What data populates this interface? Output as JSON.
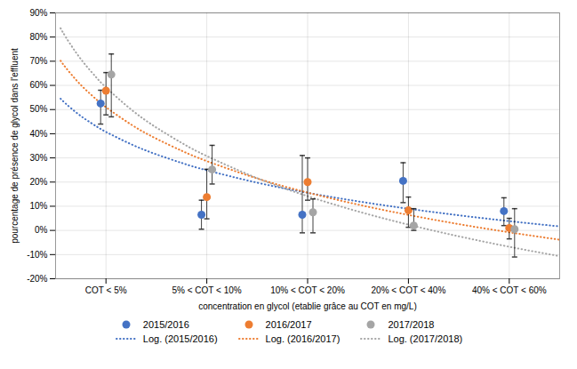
{
  "chart_data": {
    "type": "scatter",
    "xlabel": "concentration en glycol (etablie grâce au COT en mg/L)",
    "ylabel": "pourcentage de présence de glycol dans l'effluent",
    "xlim": [
      0.5,
      5.5
    ],
    "xticks": [
      {
        "value": 1,
        "label": "COT < 5%"
      },
      {
        "value": 2,
        "label": "5% < COT < 10%"
      },
      {
        "value": 3,
        "label": "10% < COT < 20%"
      },
      {
        "value": 4,
        "label": "20% < COT < 40%"
      },
      {
        "value": 5,
        "label": "40% < COT < 60%"
      }
    ],
    "ylim": [
      -0.2,
      0.9
    ],
    "yticks": [
      {
        "value": -0.2,
        "label": "-20%"
      },
      {
        "value": -0.1,
        "label": "-10%"
      },
      {
        "value": 0.0,
        "label": "0%"
      },
      {
        "value": 0.1,
        "label": "10%"
      },
      {
        "value": 0.2,
        "label": "20%"
      },
      {
        "value": 0.3,
        "label": "30%"
      },
      {
        "value": 0.4,
        "label": "40%"
      },
      {
        "value": 0.5,
        "label": "50%"
      },
      {
        "value": 0.6,
        "label": "60%"
      },
      {
        "value": 0.7,
        "label": "70%"
      },
      {
        "value": 0.8,
        "label": "80%"
      },
      {
        "value": 0.9,
        "label": "90%"
      }
    ],
    "grid": true,
    "legend": "bottom",
    "series": [
      {
        "name": "2015/2016",
        "type": "scatter",
        "marker": "circle",
        "color": "#4472C4",
        "x": [
          1,
          2,
          3,
          4,
          5
        ],
        "values": [
          0.525,
          0.065,
          0.065,
          0.205,
          0.08
        ],
        "err_low": [
          0.085,
          0.06,
          0.075,
          0.09,
          0.06
        ],
        "err_high": [
          0.055,
          0.06,
          0.245,
          0.075,
          0.055
        ]
      },
      {
        "name": "2016/2017",
        "type": "scatter",
        "marker": "circle",
        "color": "#ED7D31",
        "x": [
          1,
          2,
          3,
          4,
          5
        ],
        "values": [
          0.578,
          0.138,
          0.2,
          0.083,
          0.01
        ],
        "err_low": [
          0.1,
          0.09,
          0.075,
          0.07,
          0.045
        ],
        "err_high": [
          0.075,
          0.115,
          0.1,
          0.055,
          0.04
        ]
      },
      {
        "name": "2017/2018",
        "type": "scatter",
        "marker": "circle",
        "color": "#A5A5A5",
        "x": [
          1,
          2,
          3,
          4,
          5
        ],
        "values": [
          0.645,
          0.252,
          0.075,
          0.02,
          0.005
        ],
        "err_low": [
          0.175,
          0.06,
          0.085,
          0.02,
          0.115
        ],
        "err_high": [
          0.085,
          0.1,
          0.055,
          0.07,
          0.085
        ]
      },
      {
        "name": "Log. (2015/2016)",
        "type": "line",
        "line_style": "dotted",
        "color": "#4472C4",
        "x": [
          0.55,
          0.6,
          0.7,
          0.8,
          0.9,
          1,
          1.25,
          1.5,
          1.75,
          2,
          2.5,
          3,
          3.5,
          4,
          4.5,
          5,
          5.5
        ],
        "values": [
          0.544839,
          0.524876,
          0.489509,
          0.458874,
          0.431851,
          0.407678,
          0.356482,
          0.314653,
          0.279286,
          0.24865,
          0.197454,
          0.155625,
          0.120258,
          0.089622,
          0.062599,
          0.038426,
          0.016559
        ]
      },
      {
        "name": "Log. (2016/2017)",
        "type": "line",
        "line_style": "dotted",
        "color": "#ED7D31",
        "x": [
          0.55,
          0.6,
          0.7,
          0.8,
          0.9,
          1,
          1.25,
          1.5,
          1.75,
          2,
          2.5,
          3,
          3.5,
          4,
          4.5,
          5,
          5.5
        ],
        "values": [
          0.702037,
          0.674052,
          0.624473,
          0.581526,
          0.543644,
          0.509757,
          0.437988,
          0.379349,
          0.32977,
          0.286823,
          0.215054,
          0.156415,
          0.106836,
          0.063889,
          0.026007,
          -0.00788,
          -0.038534
        ]
      },
      {
        "name": "Log. (2017/2018)",
        "type": "line",
        "line_style": "dotted",
        "color": "#A5A5A5",
        "x": [
          0.55,
          0.6,
          0.7,
          0.8,
          0.9,
          1,
          1.25,
          1.5,
          1.75,
          2,
          2.5,
          3,
          3.5,
          4,
          4.5,
          5,
          5.5
        ],
        "values": [
          0.83654,
          0.800896,
          0.737748,
          0.683048,
          0.634798,
          0.591637,
          0.500226,
          0.425539,
          0.362391,
          0.307691,
          0.21628,
          0.141593,
          0.078445,
          0.023744,
          -0.024505,
          -0.067666,
          -0.106709
        ]
      }
    ]
  }
}
